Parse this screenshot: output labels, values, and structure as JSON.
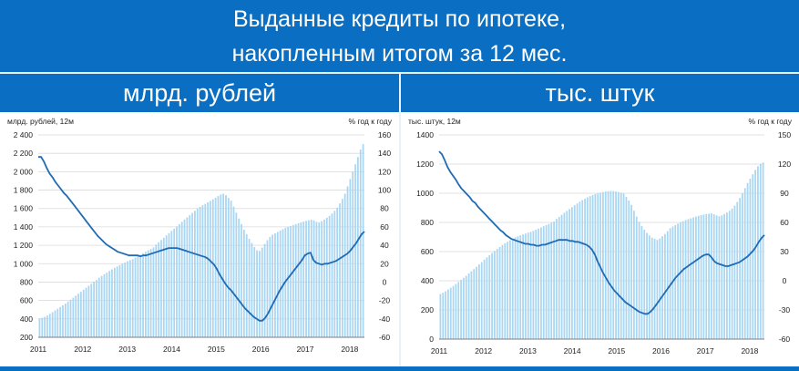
{
  "header": {
    "title_line1": "Выданные кредиты по ипотеке,",
    "title_line2": "накопленным итогом за 12 мес."
  },
  "panels": [
    {
      "heading": "млрд. рублей"
    },
    {
      "heading": "тыс. штук"
    }
  ],
  "colors": {
    "banner": "#0a6fc2",
    "bars": "#a9d6f2",
    "line": "#1f6bb4",
    "grid": "#d9d9d9"
  },
  "chart_data": [
    {
      "type": "bar+line",
      "left_axis_label": "млрд. рублей, 12м",
      "right_axis_label": "% год к году",
      "x_tick_labels": [
        "2011",
        "2012",
        "2013",
        "2014",
        "2015",
        "2016",
        "2017",
        "2018"
      ],
      "y_left_ticks": [
        "2 400",
        "2 200",
        "2 000",
        "1 800",
        "1 600",
        "1 400",
        "1 200",
        "1 000",
        "800",
        "600",
        "400",
        "200"
      ],
      "y_right_ticks": [
        "160",
        "140",
        "120",
        "100",
        "80",
        "60",
        "40",
        "20",
        "0",
        "-20",
        "-40",
        "-60"
      ],
      "ylim_left": [
        200,
        2400
      ],
      "ylim_right": [
        -60,
        160
      ],
      "grid": true,
      "x_start": "2011-01",
      "bars_name": "млрд. рублей, 12м",
      "bars": [
        406,
        412,
        422,
        437,
        455,
        473,
        492,
        510,
        529,
        548,
        566,
        588,
        609,
        630,
        652,
        674,
        694,
        717,
        738,
        760,
        782,
        805,
        823,
        848,
        867,
        884,
        902,
        921,
        938,
        955,
        970,
        985,
        1000,
        1013,
        1027,
        1038,
        1050,
        1065,
        1082,
        1098,
        1114,
        1129,
        1145,
        1160,
        1178,
        1208,
        1232,
        1257,
        1282,
        1307,
        1331,
        1356,
        1380,
        1405,
        1430,
        1455,
        1480,
        1503,
        1527,
        1552,
        1575,
        1598,
        1618,
        1635,
        1650,
        1667,
        1683,
        1700,
        1717,
        1735,
        1752,
        1760,
        1745,
        1715,
        1685,
        1620,
        1555,
        1490,
        1430,
        1370,
        1320,
        1270,
        1225,
        1180,
        1145,
        1140,
        1175,
        1215,
        1255,
        1290,
        1315,
        1330,
        1345,
        1360,
        1375,
        1390,
        1400,
        1410,
        1420,
        1430,
        1440,
        1450,
        1458,
        1466,
        1472,
        1478,
        1470,
        1455,
        1450,
        1462,
        1480,
        1500,
        1520,
        1545,
        1575,
        1610,
        1655,
        1705,
        1760,
        1840,
        1920,
        2000,
        2080,
        2160,
        2240,
        2300
      ],
      "line_name": "% год к году",
      "line": [
        136,
        136,
        131,
        124,
        118,
        114,
        109,
        105,
        101,
        97,
        94,
        90,
        86,
        82,
        78,
        74,
        70,
        66,
        62,
        58,
        54,
        50,
        47,
        44,
        41,
        39,
        37,
        35,
        33,
        32,
        31,
        30,
        29,
        29,
        29,
        29,
        28,
        29,
        29,
        30,
        31,
        32,
        33,
        34,
        35,
        36,
        37,
        37,
        37,
        37,
        36,
        35,
        34,
        33,
        32,
        31,
        30,
        29,
        28,
        27,
        25,
        22,
        19,
        14,
        8,
        3,
        -2,
        -6,
        -9,
        -13,
        -17,
        -21,
        -25,
        -29,
        -32,
        -35,
        -38,
        -40,
        -42,
        -42,
        -39,
        -34,
        -28,
        -22,
        -16,
        -10,
        -5,
        0,
        4,
        8,
        12,
        16,
        20,
        24,
        29,
        31,
        32,
        24,
        21,
        20,
        19,
        20,
        20,
        21,
        22,
        23,
        25,
        27,
        29,
        31,
        34,
        38,
        42,
        47,
        52,
        55
      ]
    },
    {
      "type": "bar+line",
      "left_axis_label": "тыс. штук, 12м",
      "right_axis_label": "% год к году",
      "x_tick_labels": [
        "2011",
        "2012",
        "2013",
        "2014",
        "2015",
        "2016",
        "2017",
        "2018"
      ],
      "y_left_ticks": [
        "1400",
        "1200",
        "1000",
        "800",
        "600",
        "400",
        "200",
        "0"
      ],
      "y_right_ticks": [
        "150",
        "120",
        "90",
        "60",
        "30",
        "0",
        "-30",
        "-60"
      ],
      "ylim_left": [
        0,
        1400
      ],
      "ylim_right": [
        -60,
        150
      ],
      "grid": true,
      "x_start": "2011-01",
      "bars_name": "тыс. штук, 12м",
      "bars": [
        310,
        318,
        328,
        340,
        352,
        364,
        378,
        392,
        406,
        420,
        434,
        450,
        465,
        480,
        496,
        512,
        528,
        545,
        560,
        575,
        590,
        605,
        618,
        632,
        645,
        657,
        668,
        678,
        688,
        697,
        705,
        712,
        718,
        724,
        730,
        735,
        742,
        750,
        758,
        766,
        774,
        782,
        790,
        798,
        806,
        824,
        838,
        852,
        866,
        879,
        892,
        905,
        918,
        930,
        942,
        953,
        963,
        972,
        980,
        988,
        995,
        1000,
        1004,
        1008,
        1012,
        1014,
        1016,
        1015,
        1012,
        1008,
        1004,
        998,
        975,
        950,
        920,
        880,
        840,
        805,
        775,
        750,
        728,
        710,
        695,
        688,
        680,
        690,
        705,
        720,
        740,
        760,
        772,
        782,
        792,
        800,
        808,
        816,
        822,
        828,
        834,
        840,
        845,
        850,
        854,
        858,
        860,
        862,
        856,
        848,
        842,
        848,
        858,
        868,
        880,
        895,
        915,
        940,
        968,
        1000,
        1035,
        1070,
        1100,
        1130,
        1160,
        1185,
        1200,
        1210
      ],
      "line_name": "% год к году",
      "line": [
        133,
        130,
        124,
        117,
        112,
        108,
        104,
        99,
        95,
        92,
        89,
        86,
        82,
        80,
        76,
        73,
        70,
        67,
        64,
        61,
        58,
        55,
        52,
        50,
        47,
        45,
        43,
        42,
        41,
        40,
        39,
        38,
        38,
        37,
        37,
        36,
        36,
        37,
        37,
        38,
        39,
        40,
        41,
        42,
        42,
        42,
        42,
        41,
        41,
        40,
        40,
        39,
        38,
        37,
        35,
        32,
        27,
        20,
        14,
        8,
        3,
        -2,
        -6,
        -10,
        -13,
        -16,
        -19,
        -22,
        -24,
        -26,
        -28,
        -30,
        -32,
        -33,
        -34,
        -34,
        -32,
        -29,
        -25,
        -21,
        -17,
        -13,
        -9,
        -5,
        -1,
        3,
        6,
        9,
        12,
        14,
        16,
        18,
        20,
        22,
        24,
        26,
        27,
        27,
        24,
        20,
        18,
        17,
        16,
        15,
        15,
        16,
        17,
        18,
        19,
        21,
        23,
        25,
        28,
        31,
        35,
        40,
        44,
        47
      ]
    }
  ]
}
